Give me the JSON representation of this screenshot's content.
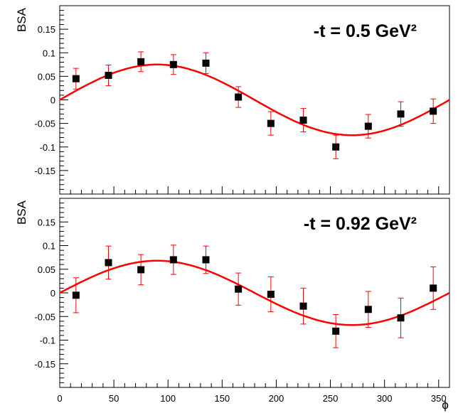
{
  "chart_data": [
    {
      "type": "scatter",
      "title": "",
      "annotation": "-t = 0.5 GeV²",
      "xlabel": "",
      "ylabel": "BSA",
      "xlim": [
        0,
        360
      ],
      "ylim": [
        -0.2,
        0.2
      ],
      "xticks": [
        0,
        50,
        100,
        150,
        200,
        250,
        300,
        350
      ],
      "yticks": [
        0.15,
        0.1,
        0.05,
        0,
        -0.05,
        -0.1,
        -0.15
      ],
      "ytick_labels": [
        "0.15",
        "0.1",
        "0.05",
        "0",
        "-0.05",
        "-0.1",
        "-0.15"
      ],
      "grid": false,
      "points": [
        {
          "x": 15,
          "y": 0.045,
          "err": 0.022
        },
        {
          "x": 45,
          "y": 0.052,
          "err": 0.022
        },
        {
          "x": 75,
          "y": 0.081,
          "err": 0.021
        },
        {
          "x": 105,
          "y": 0.075,
          "err": 0.021
        },
        {
          "x": 135,
          "y": 0.078,
          "err": 0.022
        },
        {
          "x": 165,
          "y": 0.006,
          "err": 0.022
        },
        {
          "x": 195,
          "y": -0.05,
          "err": 0.025
        },
        {
          "x": 225,
          "y": -0.043,
          "err": 0.025
        },
        {
          "x": 255,
          "y": -0.1,
          "err": 0.025
        },
        {
          "x": 285,
          "y": -0.056,
          "err": 0.025
        },
        {
          "x": 315,
          "y": -0.03,
          "err": 0.026
        },
        {
          "x": 345,
          "y": -0.024,
          "err": 0.026
        }
      ],
      "fit": {
        "function": "sin(phi)",
        "amplitude": 0.075
      },
      "colors": {
        "points": "#000000",
        "errors": "#ff0000",
        "fit": "#ff0000"
      }
    },
    {
      "type": "scatter",
      "title": "",
      "annotation": "-t = 0.92 GeV²",
      "xlabel": "ϕ",
      "ylabel": "BSA",
      "xlim": [
        0,
        360
      ],
      "ylim": [
        -0.2,
        0.2
      ],
      "xticks": [
        0,
        50,
        100,
        150,
        200,
        250,
        300,
        350
      ],
      "yticks": [
        0.15,
        0.1,
        0.05,
        0,
        -0.05,
        -0.1,
        -0.15
      ],
      "ytick_labels": [
        "0.15",
        "0.1",
        "0.05",
        "0",
        "-0.05",
        "-0.1",
        "-0.15"
      ],
      "grid": false,
      "points": [
        {
          "x": 15,
          "y": -0.005,
          "err": 0.037
        },
        {
          "x": 45,
          "y": 0.064,
          "err": 0.035
        },
        {
          "x": 75,
          "y": 0.049,
          "err": 0.032
        },
        {
          "x": 105,
          "y": 0.07,
          "err": 0.031
        },
        {
          "x": 135,
          "y": 0.07,
          "err": 0.029
        },
        {
          "x": 165,
          "y": 0.008,
          "err": 0.034
        },
        {
          "x": 195,
          "y": -0.003,
          "err": 0.037
        },
        {
          "x": 225,
          "y": -0.028,
          "err": 0.038
        },
        {
          "x": 255,
          "y": -0.081,
          "err": 0.035
        },
        {
          "x": 285,
          "y": -0.035,
          "err": 0.038
        },
        {
          "x": 315,
          "y": -0.053,
          "err": 0.042
        },
        {
          "x": 345,
          "y": 0.01,
          "err": 0.045
        }
      ],
      "fit": {
        "function": "sin(phi)",
        "amplitude": 0.068
      },
      "colors": {
        "points": "#000000",
        "errors": "#ff0000",
        "fit": "#ff0000"
      }
    }
  ]
}
